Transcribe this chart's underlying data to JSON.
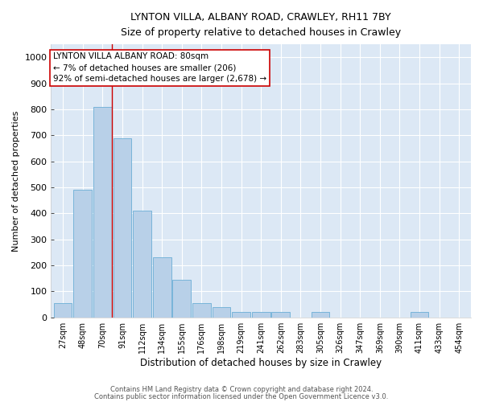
{
  "title": "LYNTON VILLA, ALBANY ROAD, CRAWLEY, RH11 7BY",
  "subtitle": "Size of property relative to detached houses in Crawley",
  "xlabel": "Distribution of detached houses by size in Crawley",
  "ylabel": "Number of detached properties",
  "categories": [
    "27sqm",
    "48sqm",
    "70sqm",
    "91sqm",
    "112sqm",
    "134sqm",
    "155sqm",
    "176sqm",
    "198sqm",
    "219sqm",
    "241sqm",
    "262sqm",
    "283sqm",
    "305sqm",
    "326sqm",
    "347sqm",
    "369sqm",
    "390sqm",
    "411sqm",
    "433sqm",
    "454sqm"
  ],
  "bar_heights": [
    55,
    490,
    810,
    690,
    410,
    230,
    145,
    55,
    40,
    20,
    20,
    20,
    0,
    20,
    0,
    0,
    0,
    0,
    20,
    0,
    0
  ],
  "bar_color": "#b8d0e8",
  "bar_edge_color": "#6baed6",
  "background_color": "#dce8f5",
  "grid_color": "#ffffff",
  "ylim": [
    0,
    1050
  ],
  "yticks": [
    0,
    100,
    200,
    300,
    400,
    500,
    600,
    700,
    800,
    900,
    1000
  ],
  "annotation_text": "LYNTON VILLA ALBANY ROAD: 80sqm\n← 7% of detached houses are smaller (206)\n92% of semi-detached houses are larger (2,678) →",
  "annotation_box_color": "#ffffff",
  "annotation_box_edge": "#cc0000",
  "vline_index": 2.48,
  "footer_line1": "Contains HM Land Registry data © Crown copyright and database right 2024.",
  "footer_line2": "Contains public sector information licensed under the Open Government Licence v3.0."
}
